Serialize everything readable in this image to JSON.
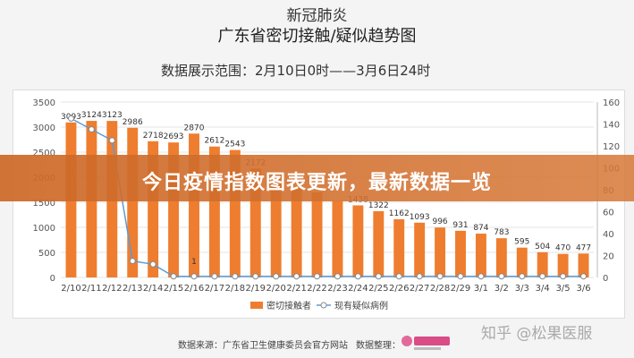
{
  "header": {
    "title_line1": "新冠肺炎",
    "title_line2": "广东省密切接触/疑似趋势图",
    "range_text": "数据展示范围：2月10日0时——3月6日24时"
  },
  "banner": {
    "text": "今日疫情指数图表更新，最新数据一览"
  },
  "footer": {
    "source": "数据来源：广东省卫生健康委员会官方网站",
    "organizer": "数据整理："
  },
  "watermark": "知乎 @松果医服",
  "colors": {
    "bar": "#ee7d2f",
    "line": "#5b9bd5",
    "banner": "#d06a2a"
  },
  "chart_data": {
    "type": "bar",
    "categories": [
      "2/10",
      "2/11",
      "2/12",
      "2/13",
      "2/14",
      "2/15",
      "2/16",
      "2/17",
      "2/18",
      "2/19",
      "2/20",
      "2/21",
      "2/22",
      "2/23",
      "2/24",
      "2/25",
      "2/26",
      "2/27",
      "2/28",
      "2/29",
      "3/1",
      "3/2",
      "3/3",
      "3/4",
      "3/5",
      "3/6"
    ],
    "series": [
      {
        "name": "密切接触者",
        "axis": "left",
        "values": [
          3093,
          3124,
          3123,
          2986,
          2718,
          2693,
          2870,
          2612,
          2543,
          2172,
          1900,
          1800,
          1700,
          1526,
          1438,
          1322,
          1162,
          1093,
          996,
          931,
          874,
          783,
          595,
          504,
          470,
          477
        ],
        "labels": [
          "3093",
          "3124",
          "3123",
          "2986",
          "2718",
          "2693",
          "2870",
          "2612",
          "2543",
          "2172",
          "",
          "",
          "",
          "",
          "1438",
          "1322",
          "1162",
          "1093",
          "996",
          "931",
          "874",
          "783",
          "595",
          "504",
          "470",
          "477"
        ]
      },
      {
        "name": "现有疑似病例",
        "axis": "right",
        "values": [
          145,
          135,
          125,
          15,
          12,
          1,
          1,
          1,
          1,
          1,
          1,
          1,
          1,
          1,
          1,
          1,
          1,
          1,
          1,
          1,
          1,
          1,
          1,
          1,
          1,
          1
        ],
        "labels": [
          "",
          "",
          "",
          "",
          "",
          "",
          "1",
          "",
          "",
          "",
          "",
          "",
          "",
          "",
          "",
          "",
          "",
          "",
          "",
          "",
          "",
          "",
          "",
          "",
          "",
          ""
        ]
      }
    ],
    "ylim": [
      0,
      3500
    ],
    "yticks": [
      0,
      500,
      1000,
      1500,
      2000,
      2500,
      3000,
      3500
    ],
    "y2lim": [
      0,
      160
    ],
    "y2ticks": [
      0,
      20,
      40,
      60,
      80,
      100,
      120,
      140,
      160
    ],
    "legend": "bottom"
  }
}
